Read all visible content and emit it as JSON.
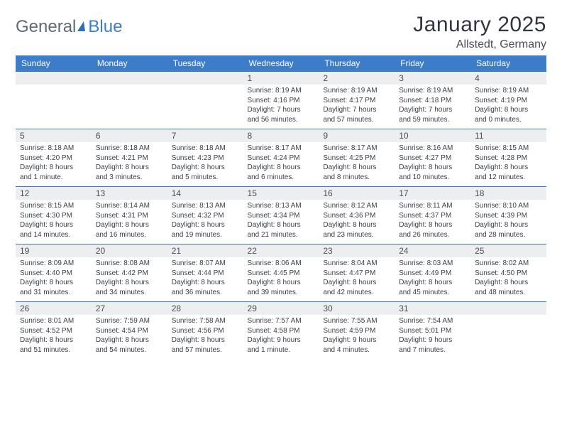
{
  "brand": {
    "part1": "General",
    "part2": "Blue"
  },
  "title": "January 2025",
  "location": "Allstedt, Germany",
  "colors": {
    "header_bg": "#3d7cc9",
    "header_text": "#ffffff",
    "daynum_bg": "#edeeef",
    "row_border": "#3d7cc9",
    "text": "#3a3f46",
    "title_color": "#333541",
    "brand_gray": "#5f6a72",
    "brand_blue": "#3d7cc9",
    "background": "#ffffff"
  },
  "typography": {
    "title_fontsize": 30,
    "location_fontsize": 16,
    "header_fontsize": 12,
    "daynum_fontsize": 12,
    "detail_fontsize": 10
  },
  "weekdays": [
    "Sunday",
    "Monday",
    "Tuesday",
    "Wednesday",
    "Thursday",
    "Friday",
    "Saturday"
  ],
  "weeks": [
    [
      null,
      null,
      null,
      {
        "n": "1",
        "sr": "Sunrise: 8:19 AM",
        "ss": "Sunset: 4:16 PM",
        "d1": "Daylight: 7 hours",
        "d2": "and 56 minutes."
      },
      {
        "n": "2",
        "sr": "Sunrise: 8:19 AM",
        "ss": "Sunset: 4:17 PM",
        "d1": "Daylight: 7 hours",
        "d2": "and 57 minutes."
      },
      {
        "n": "3",
        "sr": "Sunrise: 8:19 AM",
        "ss": "Sunset: 4:18 PM",
        "d1": "Daylight: 7 hours",
        "d2": "and 59 minutes."
      },
      {
        "n": "4",
        "sr": "Sunrise: 8:19 AM",
        "ss": "Sunset: 4:19 PM",
        "d1": "Daylight: 8 hours",
        "d2": "and 0 minutes."
      }
    ],
    [
      {
        "n": "5",
        "sr": "Sunrise: 8:18 AM",
        "ss": "Sunset: 4:20 PM",
        "d1": "Daylight: 8 hours",
        "d2": "and 1 minute."
      },
      {
        "n": "6",
        "sr": "Sunrise: 8:18 AM",
        "ss": "Sunset: 4:21 PM",
        "d1": "Daylight: 8 hours",
        "d2": "and 3 minutes."
      },
      {
        "n": "7",
        "sr": "Sunrise: 8:18 AM",
        "ss": "Sunset: 4:23 PM",
        "d1": "Daylight: 8 hours",
        "d2": "and 5 minutes."
      },
      {
        "n": "8",
        "sr": "Sunrise: 8:17 AM",
        "ss": "Sunset: 4:24 PM",
        "d1": "Daylight: 8 hours",
        "d2": "and 6 minutes."
      },
      {
        "n": "9",
        "sr": "Sunrise: 8:17 AM",
        "ss": "Sunset: 4:25 PM",
        "d1": "Daylight: 8 hours",
        "d2": "and 8 minutes."
      },
      {
        "n": "10",
        "sr": "Sunrise: 8:16 AM",
        "ss": "Sunset: 4:27 PM",
        "d1": "Daylight: 8 hours",
        "d2": "and 10 minutes."
      },
      {
        "n": "11",
        "sr": "Sunrise: 8:15 AM",
        "ss": "Sunset: 4:28 PM",
        "d1": "Daylight: 8 hours",
        "d2": "and 12 minutes."
      }
    ],
    [
      {
        "n": "12",
        "sr": "Sunrise: 8:15 AM",
        "ss": "Sunset: 4:30 PM",
        "d1": "Daylight: 8 hours",
        "d2": "and 14 minutes."
      },
      {
        "n": "13",
        "sr": "Sunrise: 8:14 AM",
        "ss": "Sunset: 4:31 PM",
        "d1": "Daylight: 8 hours",
        "d2": "and 16 minutes."
      },
      {
        "n": "14",
        "sr": "Sunrise: 8:13 AM",
        "ss": "Sunset: 4:32 PM",
        "d1": "Daylight: 8 hours",
        "d2": "and 19 minutes."
      },
      {
        "n": "15",
        "sr": "Sunrise: 8:13 AM",
        "ss": "Sunset: 4:34 PM",
        "d1": "Daylight: 8 hours",
        "d2": "and 21 minutes."
      },
      {
        "n": "16",
        "sr": "Sunrise: 8:12 AM",
        "ss": "Sunset: 4:36 PM",
        "d1": "Daylight: 8 hours",
        "d2": "and 23 minutes."
      },
      {
        "n": "17",
        "sr": "Sunrise: 8:11 AM",
        "ss": "Sunset: 4:37 PM",
        "d1": "Daylight: 8 hours",
        "d2": "and 26 minutes."
      },
      {
        "n": "18",
        "sr": "Sunrise: 8:10 AM",
        "ss": "Sunset: 4:39 PM",
        "d1": "Daylight: 8 hours",
        "d2": "and 28 minutes."
      }
    ],
    [
      {
        "n": "19",
        "sr": "Sunrise: 8:09 AM",
        "ss": "Sunset: 4:40 PM",
        "d1": "Daylight: 8 hours",
        "d2": "and 31 minutes."
      },
      {
        "n": "20",
        "sr": "Sunrise: 8:08 AM",
        "ss": "Sunset: 4:42 PM",
        "d1": "Daylight: 8 hours",
        "d2": "and 34 minutes."
      },
      {
        "n": "21",
        "sr": "Sunrise: 8:07 AM",
        "ss": "Sunset: 4:44 PM",
        "d1": "Daylight: 8 hours",
        "d2": "and 36 minutes."
      },
      {
        "n": "22",
        "sr": "Sunrise: 8:06 AM",
        "ss": "Sunset: 4:45 PM",
        "d1": "Daylight: 8 hours",
        "d2": "and 39 minutes."
      },
      {
        "n": "23",
        "sr": "Sunrise: 8:04 AM",
        "ss": "Sunset: 4:47 PM",
        "d1": "Daylight: 8 hours",
        "d2": "and 42 minutes."
      },
      {
        "n": "24",
        "sr": "Sunrise: 8:03 AM",
        "ss": "Sunset: 4:49 PM",
        "d1": "Daylight: 8 hours",
        "d2": "and 45 minutes."
      },
      {
        "n": "25",
        "sr": "Sunrise: 8:02 AM",
        "ss": "Sunset: 4:50 PM",
        "d1": "Daylight: 8 hours",
        "d2": "and 48 minutes."
      }
    ],
    [
      {
        "n": "26",
        "sr": "Sunrise: 8:01 AM",
        "ss": "Sunset: 4:52 PM",
        "d1": "Daylight: 8 hours",
        "d2": "and 51 minutes."
      },
      {
        "n": "27",
        "sr": "Sunrise: 7:59 AM",
        "ss": "Sunset: 4:54 PM",
        "d1": "Daylight: 8 hours",
        "d2": "and 54 minutes."
      },
      {
        "n": "28",
        "sr": "Sunrise: 7:58 AM",
        "ss": "Sunset: 4:56 PM",
        "d1": "Daylight: 8 hours",
        "d2": "and 57 minutes."
      },
      {
        "n": "29",
        "sr": "Sunrise: 7:57 AM",
        "ss": "Sunset: 4:58 PM",
        "d1": "Daylight: 9 hours",
        "d2": "and 1 minute."
      },
      {
        "n": "30",
        "sr": "Sunrise: 7:55 AM",
        "ss": "Sunset: 4:59 PM",
        "d1": "Daylight: 9 hours",
        "d2": "and 4 minutes."
      },
      {
        "n": "31",
        "sr": "Sunrise: 7:54 AM",
        "ss": "Sunset: 5:01 PM",
        "d1": "Daylight: 9 hours",
        "d2": "and 7 minutes."
      },
      null
    ]
  ]
}
